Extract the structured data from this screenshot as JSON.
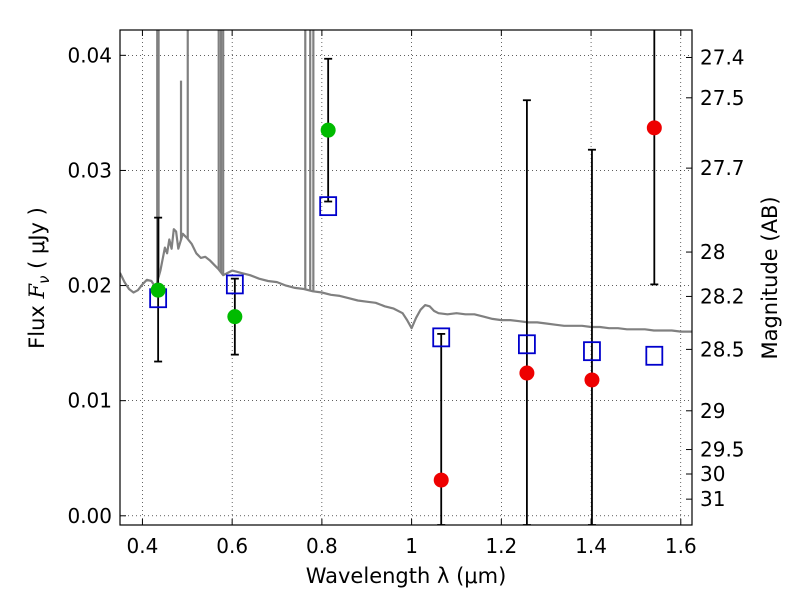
{
  "chart_data": {
    "type": "scatter",
    "xlabel": "Wavelength  λ (μm)",
    "ylabel": "Flux  F_ν  ( μJy )",
    "ylabel_parts": {
      "prefix": "Flux  ",
      "symbol": "F",
      "subscript": "ν",
      "suffix": "  ( μJy )"
    },
    "y2label": "Magnitude (AB)",
    "xlim": [
      0.35,
      1.625
    ],
    "ylim": [
      -0.0008,
      0.0422
    ],
    "grid": true,
    "x_ticks": [
      {
        "value": 0.4,
        "label": "0.4"
      },
      {
        "value": 0.6,
        "label": "0.6"
      },
      {
        "value": 0.8,
        "label": "0.8"
      },
      {
        "value": 1.0,
        "label": "1"
      },
      {
        "value": 1.2,
        "label": "1.2"
      },
      {
        "value": 1.4,
        "label": "1.4"
      },
      {
        "value": 1.6,
        "label": "1.6"
      }
    ],
    "y_ticks": [
      {
        "value": 0.0,
        "label": "0.00"
      },
      {
        "value": 0.01,
        "label": "0.01"
      },
      {
        "value": 0.02,
        "label": "0.02"
      },
      {
        "value": 0.03,
        "label": "0.03"
      },
      {
        "value": 0.04,
        "label": "0.04"
      }
    ],
    "y2_ticks": [
      {
        "value": 27.4,
        "label": "27.4"
      },
      {
        "value": 27.5,
        "label": "27.5"
      },
      {
        "value": 27.7,
        "label": "27.7"
      },
      {
        "value": 28,
        "label": "28"
      },
      {
        "value": 28.2,
        "label": "28.2"
      },
      {
        "value": 28.5,
        "label": "28.5"
      },
      {
        "value": 29,
        "label": "29"
      },
      {
        "value": 29.5,
        "label": "29.5"
      },
      {
        "value": 30,
        "label": "30"
      },
      {
        "value": 31,
        "label": "31"
      }
    ],
    "colors": {
      "model": "#808080",
      "green": "#00bb00",
      "red": "#ee0000",
      "box": "#0000cc",
      "errorbar": "#000000"
    },
    "model_spectrum": [
      [
        0.35,
        0.0211
      ],
      [
        0.36,
        0.0203
      ],
      [
        0.37,
        0.0197
      ],
      [
        0.38,
        0.0194
      ],
      [
        0.39,
        0.0196
      ],
      [
        0.4,
        0.0201
      ],
      [
        0.41,
        0.0205
      ],
      [
        0.42,
        0.0204
      ],
      [
        0.425,
        0.0201
      ],
      [
        0.43,
        0.0199
      ],
      [
        0.435,
        0.0206
      ],
      [
        0.44,
        0.0213
      ],
      [
        0.45,
        0.0233
      ],
      [
        0.455,
        0.0228
      ],
      [
        0.46,
        0.024
      ],
      [
        0.465,
        0.0232
      ],
      [
        0.47,
        0.0249
      ],
      [
        0.475,
        0.0247
      ],
      [
        0.48,
        0.0232
      ],
      [
        0.49,
        0.0245
      ],
      [
        0.5,
        0.0241
      ],
      [
        0.51,
        0.0236
      ],
      [
        0.52,
        0.0228
      ],
      [
        0.53,
        0.0224
      ],
      [
        0.54,
        0.0225
      ],
      [
        0.55,
        0.0222
      ],
      [
        0.56,
        0.0218
      ],
      [
        0.57,
        0.0214
      ],
      [
        0.58,
        0.0209
      ],
      [
        0.59,
        0.0211
      ],
      [
        0.6,
        0.0213
      ],
      [
        0.61,
        0.0212
      ],
      [
        0.62,
        0.0211
      ],
      [
        0.64,
        0.0209
      ],
      [
        0.66,
        0.0206
      ],
      [
        0.68,
        0.0204
      ],
      [
        0.7,
        0.0203
      ],
      [
        0.72,
        0.02
      ],
      [
        0.74,
        0.0198
      ],
      [
        0.76,
        0.0197
      ],
      [
        0.78,
        0.0195
      ],
      [
        0.8,
        0.0194
      ],
      [
        0.82,
        0.0192
      ],
      [
        0.84,
        0.0191
      ],
      [
        0.86,
        0.0189
      ],
      [
        0.88,
        0.0187
      ],
      [
        0.9,
        0.0186
      ],
      [
        0.92,
        0.0185
      ],
      [
        0.94,
        0.0182
      ],
      [
        0.96,
        0.018
      ],
      [
        0.98,
        0.0176
      ],
      [
        0.99,
        0.017
      ],
      [
        1.0,
        0.0163
      ],
      [
        1.01,
        0.0172
      ],
      [
        1.02,
        0.0179
      ],
      [
        1.03,
        0.0183
      ],
      [
        1.04,
        0.0182
      ],
      [
        1.05,
        0.0178
      ],
      [
        1.06,
        0.0176
      ],
      [
        1.08,
        0.0175
      ],
      [
        1.1,
        0.0176
      ],
      [
        1.12,
        0.0175
      ],
      [
        1.14,
        0.0175
      ],
      [
        1.16,
        0.0173
      ],
      [
        1.18,
        0.0171
      ],
      [
        1.2,
        0.017
      ],
      [
        1.22,
        0.017
      ],
      [
        1.24,
        0.0169
      ],
      [
        1.26,
        0.0168
      ],
      [
        1.28,
        0.0168
      ],
      [
        1.3,
        0.0167
      ],
      [
        1.32,
        0.0166
      ],
      [
        1.34,
        0.0165
      ],
      [
        1.36,
        0.0165
      ],
      [
        1.38,
        0.0165
      ],
      [
        1.4,
        0.0164
      ],
      [
        1.42,
        0.0164
      ],
      [
        1.44,
        0.0163
      ],
      [
        1.46,
        0.0163
      ],
      [
        1.48,
        0.0162
      ],
      [
        1.5,
        0.0162
      ],
      [
        1.52,
        0.0162
      ],
      [
        1.54,
        0.0161
      ],
      [
        1.56,
        0.0161
      ],
      [
        1.58,
        0.0161
      ],
      [
        1.6,
        0.016
      ],
      [
        1.625,
        0.016
      ]
    ],
    "emission_lines": [
      {
        "x": 0.433,
        "peak": 0.05
      },
      {
        "x": 0.436,
        "peak": 0.05
      },
      {
        "x": 0.486,
        "peak": 0.0378
      },
      {
        "x": 0.501,
        "peak": 0.05
      },
      {
        "x": 0.57,
        "peak": 0.05
      },
      {
        "x": 0.575,
        "peak": 0.05
      },
      {
        "x": 0.58,
        "peak": 0.05
      },
      {
        "x": 0.763,
        "peak": 0.05
      },
      {
        "x": 0.774,
        "peak": 0.05
      },
      {
        "x": 0.781,
        "peak": 0.05
      }
    ],
    "green_points": [
      {
        "x": 0.435,
        "y": 0.0196
      },
      {
        "x": 0.606,
        "y": 0.0173
      },
      {
        "x": 0.814,
        "y": 0.0335
      }
    ],
    "red_points": [
      {
        "x": 1.066,
        "y": 0.0031
      },
      {
        "x": 1.257,
        "y": 0.0124
      },
      {
        "x": 1.402,
        "y": 0.0118
      },
      {
        "x": 1.541,
        "y": 0.0337
      }
    ],
    "error_bars": [
      {
        "x": 0.435,
        "low": 0.0134,
        "high": 0.0259
      },
      {
        "x": 0.606,
        "low": 0.014,
        "high": 0.0206
      },
      {
        "x": 0.814,
        "low": 0.0273,
        "high": 0.0397
      },
      {
        "x": 1.066,
        "low": -0.0008,
        "high": 0.0158
      },
      {
        "x": 1.257,
        "low": -0.0008,
        "high": 0.0361
      },
      {
        "x": 1.402,
        "low": -0.0008,
        "high": 0.0318
      },
      {
        "x": 1.541,
        "low": 0.0201,
        "high": 0.0422,
        "top_cap": false
      }
    ],
    "box_points": [
      {
        "x": 0.435,
        "y": 0.0189
      },
      {
        "x": 0.606,
        "y": 0.0201
      },
      {
        "x": 0.814,
        "y": 0.0269
      },
      {
        "x": 1.066,
        "y": 0.0155
      },
      {
        "x": 1.257,
        "y": 0.0149
      },
      {
        "x": 1.402,
        "y": 0.0143
      },
      {
        "x": 1.541,
        "y": 0.0139
      }
    ]
  }
}
